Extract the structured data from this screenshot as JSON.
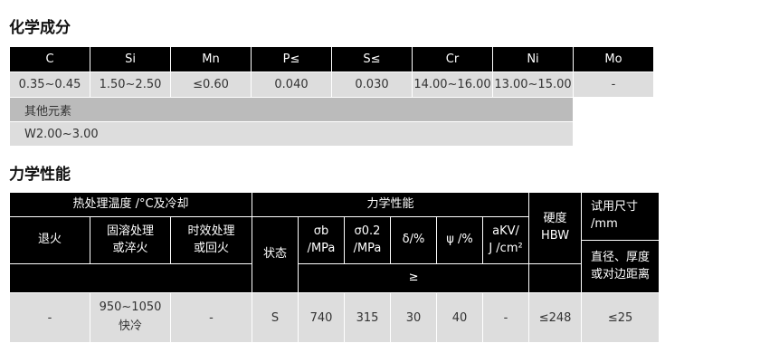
{
  "chem": {
    "title": "化学成分",
    "headers": [
      "C",
      "Si",
      "Mn",
      "P≤",
      "S≤",
      "Cr",
      "Ni",
      "Mo"
    ],
    "values": [
      "0.35~0.45",
      "1.50~2.50",
      "≤0.60",
      "0.040",
      "0.030",
      "14.00~16.00",
      "13.00~15.00",
      "-"
    ],
    "other_label": "其他元素",
    "other_value": "W2.00~3.00"
  },
  "mech": {
    "title": "力学性能",
    "heat_group": "热处理温度 /°C及冷却",
    "mech_group": "力学性能",
    "anneal": "退火",
    "solution": "固溶处理\n或淬火",
    "aging": "时效处理\n或回火",
    "state": "状态",
    "sigma_b": "σb\n/MPa",
    "sigma_02": "σ0.2\n/MPa",
    "delta": "δ/%",
    "psi": "ψ /%",
    "akv": "aKV/\nJ /cm²",
    "ge": "≥",
    "hardness": "硬度\nHBW",
    "size_title": "试用尺寸\n/mm",
    "size_sub": "直径、厚度\n或对边距离",
    "row": {
      "anneal": "-",
      "solution": "950~1050\n快冷",
      "aging": "-",
      "state": "S",
      "sigma_b": "740",
      "sigma_02": "315",
      "delta": "30",
      "psi": "40",
      "akv": "-",
      "hardness": "≤248",
      "size": "≤25"
    }
  }
}
